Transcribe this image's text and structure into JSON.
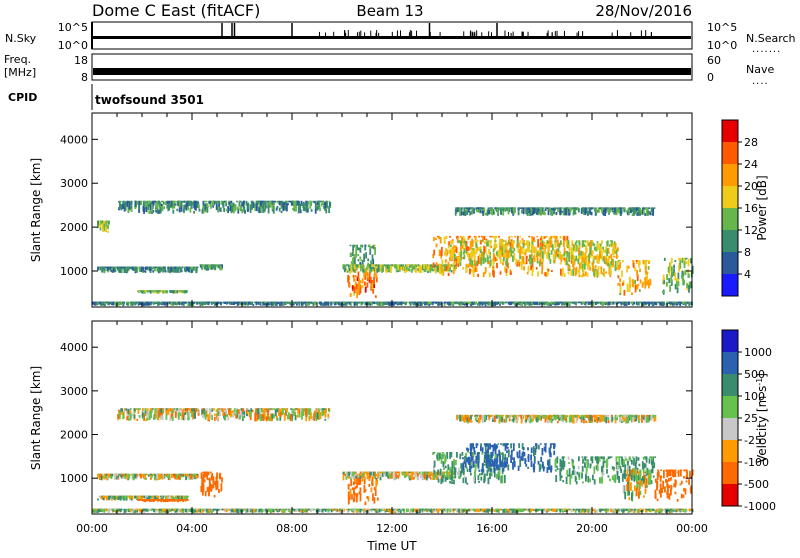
{
  "header": {
    "radar": "Dome C East (fitACF)",
    "beam": "Beam 13",
    "date": "28/Nov/2016"
  },
  "noise_panel": {
    "left_label": "N.Sky",
    "right_label": "N.Search",
    "left_ticks": [
      "10^5",
      "10^0"
    ],
    "right_ticks": [
      "10^5",
      "10^0"
    ]
  },
  "freq_panel": {
    "left_label_line1": "Freq.",
    "left_label_line2": "[MHz]",
    "right_label": "Nave",
    "left_ticks": [
      "18",
      "8"
    ],
    "right_ticks": [
      "60",
      "0"
    ]
  },
  "cpid_panel": {
    "label": "CPID",
    "program": "twofsound 3501"
  },
  "x_axis": {
    "label": "Time UT",
    "ticks": [
      "00:00",
      "04:00",
      "08:00",
      "12:00",
      "16:00",
      "20:00",
      "00:00"
    ]
  },
  "chart_data": [
    {
      "type": "heatmap",
      "name": "power",
      "ylabel": "Slant Range [km]",
      "xlabel": "Time UT",
      "y_ticks": [
        1000,
        2000,
        3000,
        4000
      ],
      "ylim": [
        180,
        4600
      ],
      "xlim_hours": [
        0,
        24
      ],
      "colorbar": {
        "label": "Power [dB]",
        "ticks": [
          "28",
          "24",
          "20",
          "16",
          "12",
          "8",
          "4"
        ],
        "colors": [
          "#e60000",
          "#ff5a00",
          "#ff9a00",
          "#f0cc1a",
          "#66b64c",
          "#3a8c6e",
          "#2a5a9a",
          "#1a1aff"
        ]
      },
      "regions": [
        {
          "t": [
            0.0,
            24.0
          ],
          "r": [
            200,
            300
          ],
          "power": 9
        },
        {
          "t": [
            0.2,
            4.2
          ],
          "r": [
            950,
            1100
          ],
          "power": 9
        },
        {
          "t": [
            0.2,
            0.7
          ],
          "r": [
            1850,
            2150
          ],
          "power": 15
        },
        {
          "t": [
            1.0,
            9.5
          ],
          "r": [
            2300,
            2600
          ],
          "power": 10
        },
        {
          "t": [
            4.3,
            5.2
          ],
          "r": [
            1000,
            1150
          ],
          "power": 11
        },
        {
          "t": [
            1.8,
            3.8
          ],
          "r": [
            480,
            560
          ],
          "power": 13
        },
        {
          "t": [
            10.2,
            11.4
          ],
          "r": [
            380,
            1050
          ],
          "power": 24
        },
        {
          "t": [
            10.3,
            11.3
          ],
          "r": [
            1050,
            1600
          ],
          "power": 12
        },
        {
          "t": [
            10.0,
            14.5
          ],
          "r": [
            950,
            1150
          ],
          "power": 14
        },
        {
          "t": [
            13.6,
            19.2
          ],
          "r": [
            850,
            1800
          ],
          "power": 22
        },
        {
          "t": [
            14.3,
            21.0
          ],
          "r": [
            1100,
            1700
          ],
          "power": 17
        },
        {
          "t": [
            19.0,
            21.0
          ],
          "r": [
            850,
            1350
          ],
          "power": 18
        },
        {
          "t": [
            21.0,
            22.3
          ],
          "r": [
            400,
            1250
          ],
          "power": 20
        },
        {
          "t": [
            22.8,
            24.0
          ],
          "r": [
            450,
            1300
          ],
          "power": 14
        },
        {
          "t": [
            14.5,
            22.5
          ],
          "r": [
            2250,
            2450
          ],
          "power": 10
        }
      ]
    },
    {
      "type": "heatmap",
      "name": "velocity",
      "ylabel": "Slant Range [km]",
      "xlabel": "Time UT",
      "y_ticks": [
        1000,
        2000,
        3000,
        4000
      ],
      "ylim": [
        180,
        4600
      ],
      "xlim_hours": [
        0,
        24
      ],
      "colorbar": {
        "label": "Velocity [m s^-1]",
        "ticks": [
          "1000",
          "500",
          "100",
          "25",
          "-25",
          "-100",
          "-500",
          "-1000"
        ],
        "colors": [
          "#1a1ac8",
          "#2a62b0",
          "#3a8c6e",
          "#66c24c",
          "#c8c8c8",
          "#ff9a00",
          "#ff6a00",
          "#e60000"
        ]
      },
      "regions": [
        {
          "t": [
            0.0,
            24.0
          ],
          "r": [
            200,
            300
          ],
          "velocity": 60
        },
        {
          "t": [
            0.2,
            4.2
          ],
          "r": [
            950,
            1100
          ],
          "velocity": 0
        },
        {
          "t": [
            0.2,
            3.8
          ],
          "r": [
            480,
            600
          ],
          "velocity": 60
        },
        {
          "t": [
            1.8,
            3.8
          ],
          "r": [
            450,
            520
          ],
          "velocity": -300
        },
        {
          "t": [
            1.0,
            9.5
          ],
          "r": [
            2300,
            2600
          ],
          "velocity": 0
        },
        {
          "t": [
            4.3,
            5.2
          ],
          "r": [
            550,
            1150
          ],
          "velocity": -300
        },
        {
          "t": [
            10.2,
            11.4
          ],
          "r": [
            380,
            1100
          ],
          "velocity": -200
        },
        {
          "t": [
            10.0,
            14.5
          ],
          "r": [
            950,
            1150
          ],
          "velocity": 0
        },
        {
          "t": [
            13.6,
            16.5
          ],
          "r": [
            850,
            1600
          ],
          "velocity": 150
        },
        {
          "t": [
            14.8,
            18.5
          ],
          "r": [
            1100,
            1800
          ],
          "velocity": 600
        },
        {
          "t": [
            18.5,
            22.5
          ],
          "r": [
            850,
            1500
          ],
          "velocity": 150
        },
        {
          "t": [
            21.2,
            22.3
          ],
          "r": [
            450,
            1200
          ],
          "velocity": 0
        },
        {
          "t": [
            22.5,
            24.0
          ],
          "r": [
            450,
            1200
          ],
          "velocity": -300
        },
        {
          "t": [
            14.5,
            22.5
          ],
          "r": [
            2250,
            2450
          ],
          "velocity": 0
        }
      ]
    }
  ]
}
